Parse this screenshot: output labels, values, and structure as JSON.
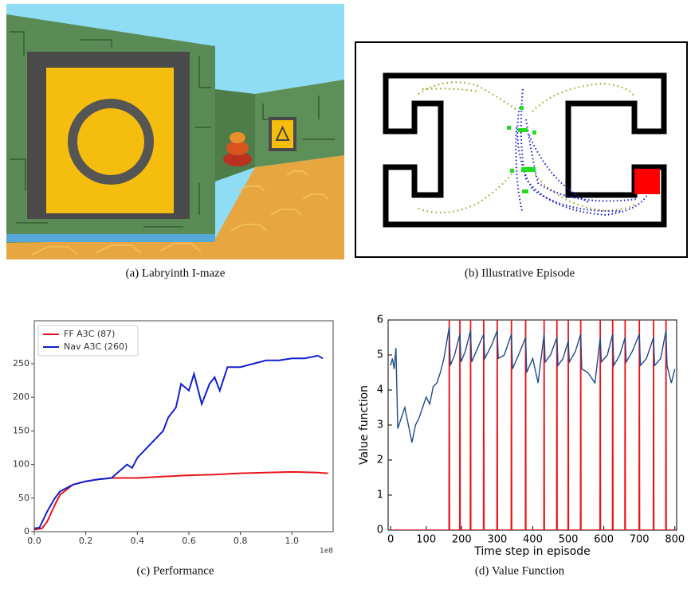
{
  "captions": [
    "(a) Labryinth I-maze",
    "(b) Illustrative Episode",
    "(c) Performance",
    "(d) Value Function"
  ],
  "chart_data": [
    {
      "type": "line",
      "legend": "upper left",
      "grid": false,
      "x_offset_label": "1e8",
      "xlim": [
        0,
        1.16
      ],
      "ylim": [
        0,
        314
      ],
      "xticks": [
        {
          "value": 0,
          "label": "0.0"
        },
        0.2,
        0.4,
        0.6,
        0.8,
        {
          "value": 1,
          "label": "1.0"
        }
      ],
      "yticks": [
        0,
        50,
        100,
        150,
        200,
        250
      ],
      "series": [
        {
          "name": "FF A3C (87)",
          "color": "#e8141a",
          "x": [
            0,
            0.03,
            0.05,
            0.08,
            0.1,
            0.15,
            0.2,
            0.25,
            0.3,
            0.4,
            0.5,
            0.6,
            0.7,
            0.8,
            0.9,
            1.0,
            1.1,
            1.14
          ],
          "values": [
            3,
            5,
            15,
            40,
            55,
            70,
            75,
            78,
            80,
            80,
            82,
            84,
            85,
            87,
            88,
            89,
            88,
            87
          ]
        },
        {
          "name": "Nav A3C (260)",
          "color": "#1020d0",
          "x": [
            0,
            0.02,
            0.05,
            0.08,
            0.1,
            0.15,
            0.2,
            0.25,
            0.3,
            0.33,
            0.36,
            0.38,
            0.4,
            0.45,
            0.5,
            0.52,
            0.55,
            0.57,
            0.6,
            0.62,
            0.65,
            0.68,
            0.7,
            0.72,
            0.75,
            0.8,
            0.85,
            0.9,
            0.95,
            1.0,
            1.05,
            1.1,
            1.12
          ],
          "values": [
            5,
            6,
            30,
            50,
            60,
            70,
            75,
            78,
            80,
            90,
            100,
            95,
            110,
            130,
            150,
            170,
            185,
            220,
            210,
            235,
            190,
            220,
            230,
            210,
            245,
            245,
            250,
            255,
            255,
            258,
            258,
            262,
            258
          ]
        }
      ]
    },
    {
      "type": "line",
      "grid": false,
      "xlabel": "Time step in episode",
      "ylabel": "Value function",
      "xlim": [
        -7,
        805
      ],
      "ylim": [
        0,
        6
      ],
      "xticks": [
        0,
        100,
        200,
        300,
        400,
        500,
        600,
        700,
        800
      ],
      "yticks": [
        0,
        1,
        2,
        3,
        4,
        5,
        6
      ],
      "series": [
        {
          "color": "#e8141a",
          "x": [
            0,
            164,
            165,
            166,
            194,
            195,
            196,
            224,
            225,
            226,
            261,
            262,
            263,
            299,
            300,
            301,
            339,
            340,
            341,
            379,
            380,
            381,
            431,
            432,
            433,
            467,
            468,
            469,
            499,
            500,
            501,
            534,
            535,
            536,
            589,
            590,
            591,
            624,
            625,
            626,
            659,
            660,
            661,
            699,
            700,
            701,
            739,
            740,
            741,
            774,
            775,
            776,
            800
          ],
          "values": [
            0,
            0,
            10,
            0,
            0,
            10,
            0,
            0,
            10,
            0,
            0,
            10,
            0,
            0,
            10,
            0,
            0,
            10,
            0,
            0,
            10,
            0,
            0,
            10,
            0,
            0,
            10,
            0,
            0,
            10,
            0,
            0,
            10,
            0,
            0,
            10,
            0,
            0,
            10,
            0,
            0,
            10,
            0,
            0,
            10,
            0,
            0,
            10,
            0,
            0,
            10,
            0,
            0
          ]
        },
        {
          "color": "#1f4a8c",
          "x": [
            0,
            5,
            10,
            15,
            20,
            30,
            40,
            50,
            60,
            70,
            80,
            90,
            100,
            110,
            120,
            130,
            140,
            150,
            160,
            165,
            168,
            180,
            195,
            198,
            210,
            225,
            228,
            245,
            262,
            265,
            285,
            300,
            303,
            320,
            340,
            343,
            360,
            380,
            383,
            400,
            415,
            432,
            435,
            450,
            468,
            471,
            485,
            500,
            503,
            520,
            535,
            538,
            555,
            575,
            590,
            593,
            610,
            625,
            628,
            645,
            660,
            663,
            680,
            700,
            703,
            720,
            740,
            743,
            760,
            775,
            778,
            790,
            800
          ],
          "values": [
            4.7,
            4.9,
            4.6,
            5.2,
            2.9,
            3.2,
            3.5,
            3.0,
            2.5,
            3.0,
            3.2,
            3.5,
            3.8,
            3.6,
            4.1,
            4.2,
            4.5,
            4.9,
            5.5,
            5.8,
            4.7,
            5.0,
            5.6,
            4.8,
            5.1,
            5.7,
            4.8,
            5.2,
            5.6,
            4.9,
            5.3,
            5.7,
            4.9,
            5.0,
            5.6,
            4.6,
            5.0,
            5.5,
            4.5,
            4.9,
            4.2,
            5.6,
            4.8,
            5.0,
            5.5,
            4.7,
            4.9,
            5.4,
            4.8,
            5.1,
            5.6,
            4.6,
            4.5,
            4.2,
            5.5,
            4.8,
            5.0,
            5.6,
            4.7,
            5.0,
            5.5,
            4.8,
            5.1,
            5.6,
            4.7,
            4.9,
            5.5,
            4.7,
            4.9,
            5.7,
            4.7,
            4.2,
            4.6
          ]
        }
      ]
    }
  ]
}
